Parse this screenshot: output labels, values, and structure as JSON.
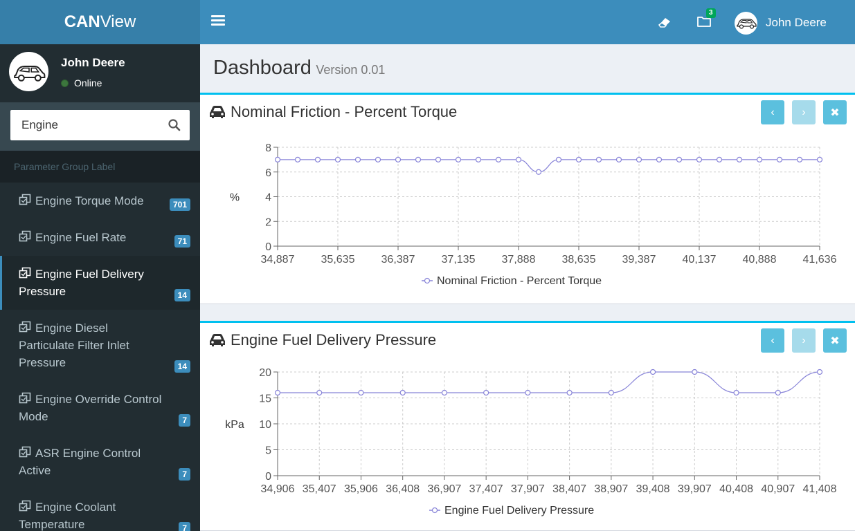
{
  "app": {
    "brand_bold": "CAN",
    "brand_rest": "View"
  },
  "topbar": {
    "notification_count": "3",
    "user_name": "John Deere"
  },
  "sidebar": {
    "user_name": "John Deere",
    "status": "Online",
    "search": {
      "value": "Engine",
      "placeholder": ""
    },
    "section_label": "Parameter Group Label",
    "items": [
      {
        "label": "Engine Torque Mode",
        "badge": "701",
        "active": false
      },
      {
        "label": "Engine Fuel Rate",
        "badge": "71",
        "active": false
      },
      {
        "label": "Engine Fuel Delivery Pressure",
        "badge": "14",
        "active": true
      },
      {
        "label": "Engine Diesel Particulate Filter Inlet Pressure",
        "badge": "14",
        "active": false
      },
      {
        "label": "Engine Override Control Mode",
        "badge": "7",
        "active": false
      },
      {
        "label": "ASR Engine Control Active",
        "badge": "7",
        "active": false
      },
      {
        "label": "Engine Coolant Temperature",
        "badge": "7",
        "active": false
      }
    ]
  },
  "page": {
    "title": "Dashboard",
    "version": "Version 0.01"
  },
  "colors": {
    "series": "#8884d8",
    "accent": "#3c8dbc"
  },
  "chart_data": [
    {
      "type": "line",
      "title": "Nominal Friction - Percent Torque",
      "ylabel": "%",
      "xlabel": "",
      "ylim": [
        0,
        8
      ],
      "yticks": [
        "0",
        "2",
        "4",
        "6",
        "8"
      ],
      "xtick_labels": [
        "34,887",
        "35,635",
        "36,387",
        "37,135",
        "37,888",
        "38,635",
        "39,387",
        "40,137",
        "40,888",
        "41,636"
      ],
      "series": [
        {
          "name": "Nominal Friction - Percent Torque",
          "values": [
            7,
            7,
            7,
            7,
            7,
            7,
            7,
            7,
            7,
            7,
            7,
            7,
            7,
            6,
            7,
            7,
            7,
            7,
            7,
            7,
            7,
            7,
            7,
            7,
            7,
            7,
            7,
            7
          ]
        }
      ],
      "grid": true,
      "legend": "bottom-center"
    },
    {
      "type": "line",
      "title": "Engine Fuel Delivery Pressure",
      "ylabel": "kPa",
      "xlabel": "",
      "ylim": [
        0,
        20
      ],
      "yticks": [
        "0",
        "5",
        "10",
        "15",
        "20"
      ],
      "xtick_labels": [
        "34,906",
        "35,407",
        "35,906",
        "36,408",
        "36,907",
        "37,407",
        "37,907",
        "38,407",
        "38,907",
        "39,408",
        "39,907",
        "40,408",
        "40,907",
        "41,408"
      ],
      "series": [
        {
          "name": "Engine Fuel Delivery Pressure",
          "values": [
            16,
            16,
            16,
            16,
            16,
            16,
            16,
            16,
            16,
            20,
            20,
            16,
            16,
            20
          ]
        }
      ],
      "grid": true,
      "legend": "bottom-center"
    }
  ]
}
